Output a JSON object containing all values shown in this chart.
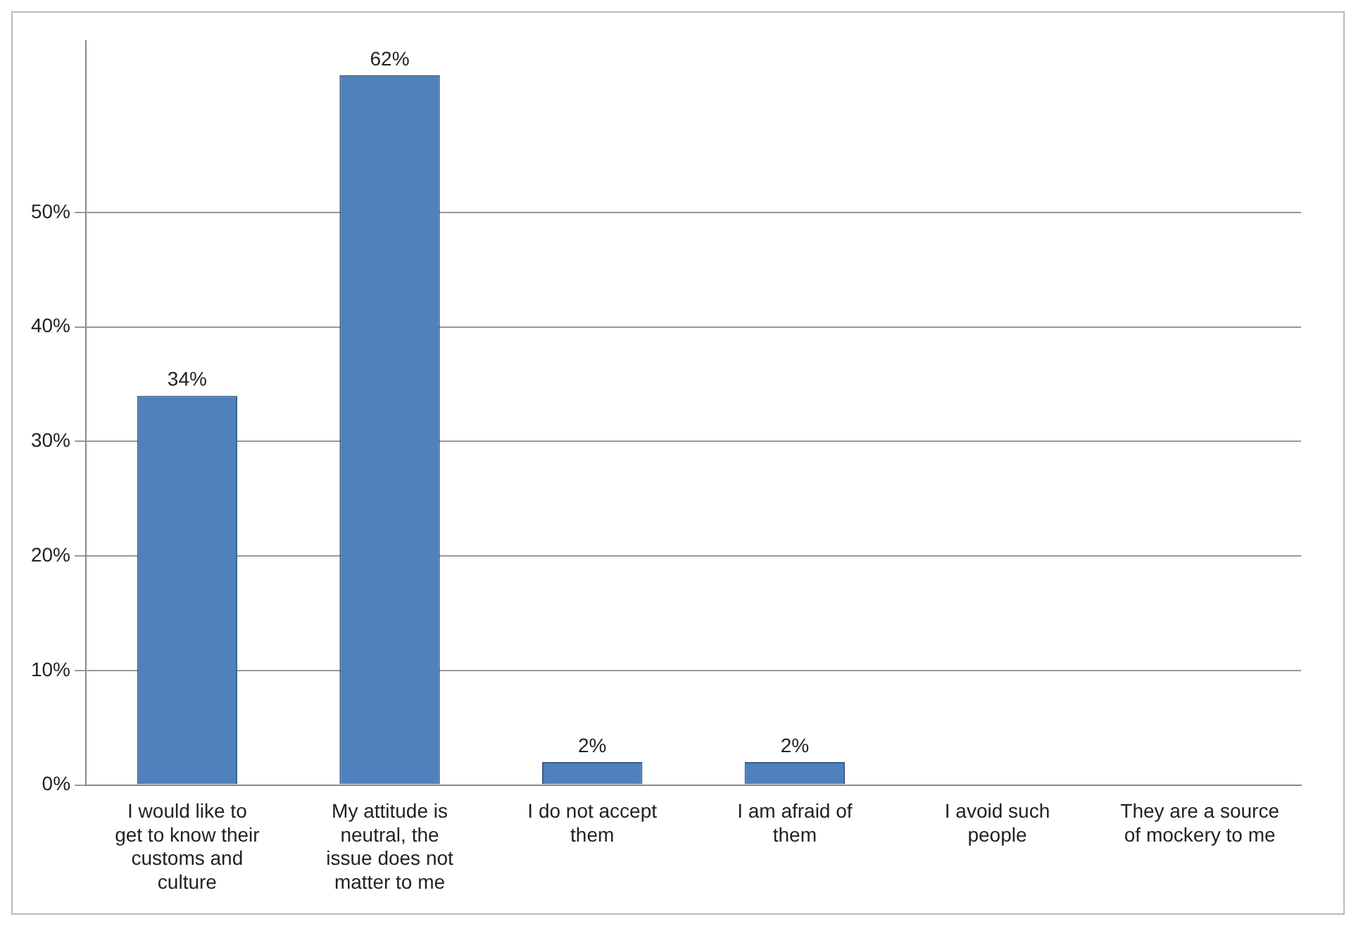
{
  "chart_data": {
    "type": "bar",
    "categories": [
      "I would like to get to know their customs and culture",
      "My attitude is neutral, the issue does not matter to me",
      "I do not accept them",
      "I am afraid of them",
      "I avoid such people",
      "They are a source of mockery to me"
    ],
    "values": [
      34,
      62,
      2,
      2,
      0,
      0
    ],
    "value_labels": [
      "34%",
      "62%",
      "2%",
      "2%",
      null,
      null
    ],
    "color": "#4f81bd",
    "ylim": [
      0,
      65
    ],
    "yticks": [
      {
        "value": 0,
        "label": "0%"
      },
      {
        "value": 10,
        "label": "10%"
      },
      {
        "value": 20,
        "label": "20%"
      },
      {
        "value": 30,
        "label": "30%"
      },
      {
        "value": 40,
        "label": "40%"
      },
      {
        "value": 50,
        "label": "50%"
      }
    ],
    "grid": "y",
    "legend": false
  }
}
